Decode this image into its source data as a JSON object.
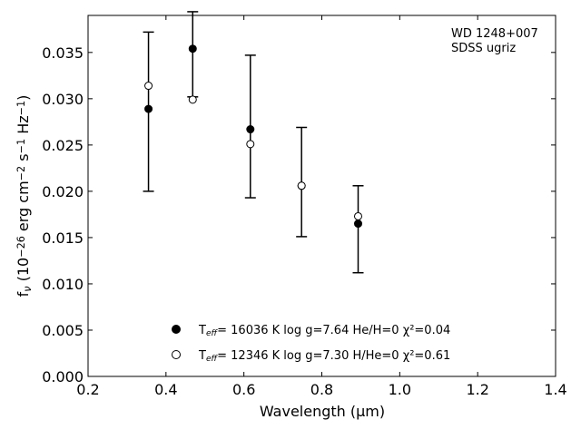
{
  "chart_data": {
    "type": "scatter",
    "annotation_lines": [
      "WD 1248+007",
      "SDSS ugriz"
    ],
    "xlabel": "Wavelength (μm)",
    "ylabel": "f_ν (10^−26 erg cm^−2 s^−1 Hz^−1)",
    "xlim": [
      0.2,
      1.4
    ],
    "ylim": [
      0.0,
      0.039
    ],
    "xticks": [
      0.2,
      0.4,
      0.6,
      0.8,
      1.0,
      1.2,
      1.4
    ],
    "xtick_labels": [
      "0.2",
      "0.4",
      "0.6",
      "0.8",
      "1.0",
      "1.2",
      "1.4"
    ],
    "yticks": [
      0.0,
      0.005,
      0.01,
      0.015,
      0.02,
      0.025,
      0.03,
      0.035
    ],
    "ytick_labels": [
      "0.000",
      "0.005",
      "0.010",
      "0.015",
      "0.020",
      "0.025",
      "0.030",
      "0.035"
    ],
    "grid": false,
    "legend_position": "bottom-center",
    "observations": {
      "x": [
        0.3551,
        0.4686,
        0.6166,
        0.748,
        0.8932
      ],
      "y": [
        0.0286,
        0.0348,
        0.027,
        0.021,
        0.0159
      ],
      "err": [
        0.0086,
        0.0046,
        0.0077,
        0.0059,
        0.0047
      ]
    },
    "series": [
      {
        "marker": "filled-circle",
        "legend_label": "T_eff= 16036 K  log g=7.64  He/H=0  χ²=0.04",
        "x": [
          0.3551,
          0.4686,
          0.6166,
          0.748,
          0.8932
        ],
        "y": [
          0.0289,
          0.0354,
          0.0267,
          0.0206,
          0.0165
        ]
      },
      {
        "marker": "open-circle",
        "legend_label": "T_eff= 12346 K  log g=7.30  H/He=0  χ²=0.61",
        "x": [
          0.3551,
          0.4686,
          0.6166,
          0.748,
          0.8932
        ],
        "y": [
          0.0314,
          0.0299,
          0.0251,
          0.0206,
          0.0173
        ]
      }
    ]
  }
}
